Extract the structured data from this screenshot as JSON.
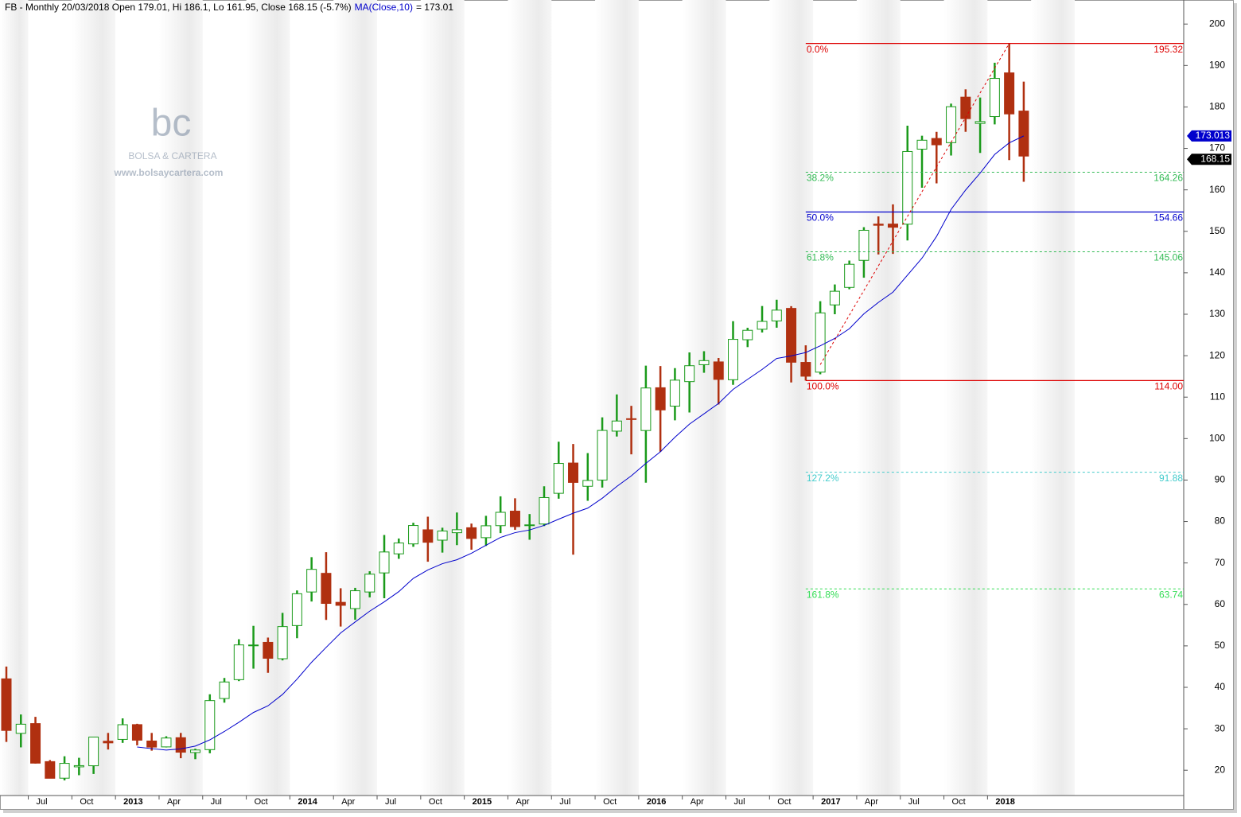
{
  "chart_data": {
    "type": "candlestick",
    "title": "FB - Monthly 20/03/2018 Open 179.01, Hi 186.1, Lo 161.95, Close 168.15 (-5.7%)",
    "ma_name": "MA(Close,10)",
    "ma_text": "= 173.01",
    "watermark": {
      "logo": "bc",
      "brand": "BOLSA & CARTERA",
      "url": "www.bolsaycartera.com"
    },
    "categories": [
      null,
      null,
      "Jul",
      null,
      null,
      "Oct",
      null,
      null,
      "2013",
      null,
      null,
      "Apr",
      null,
      null,
      "Jul",
      null,
      null,
      "Oct",
      null,
      null,
      "2014",
      null,
      null,
      "Apr",
      null,
      null,
      "Jul",
      null,
      null,
      "Oct",
      null,
      null,
      "2015",
      null,
      null,
      "Apr",
      null,
      null,
      "Jul",
      null,
      null,
      "Oct",
      null,
      null,
      "2016",
      null,
      null,
      "Apr",
      null,
      null,
      "Jul",
      null,
      null,
      "Oct",
      null,
      null,
      "2017",
      null,
      null,
      "Apr",
      null,
      null,
      "Jul",
      null,
      null,
      "Oct",
      null,
      null,
      "2018",
      null,
      null
    ],
    "open": [
      42.05,
      28.9,
      31.25,
      22.08,
      18.08,
      20.82,
      21.08,
      27.0,
      27.44,
      31.0,
      27.05,
      25.63,
      27.85,
      24.27,
      24.97,
      37.3,
      41.85,
      50.04,
      50.85,
      46.9,
      54.9,
      63.0,
      67.5,
      60.5,
      59.0,
      63.0,
      67.6,
      72.2,
      74.6,
      78.0,
      75.5,
      77.3,
      78.5,
      76.1,
      79.0,
      82.5,
      79.0,
      79.4,
      86.8,
      94.1,
      88.5,
      90.0,
      101.8,
      104.8,
      101.95,
      112.27,
      107.83,
      113.75,
      117.83,
      118.5,
      114.2,
      123.85,
      126.38,
      128.38,
      131.41,
      118.38,
      116.03,
      132.25,
      136.47,
      143.0,
      151.74,
      151.75,
      151.72,
      169.82,
      172.4,
      171.39,
      182.36,
      176.03,
      177.68,
      188.22,
      179.01
    ],
    "high": [
      45.0,
      33.45,
      32.88,
      22.45,
      23.37,
      23.0,
      28.0,
      29.0,
      32.51,
      31.2,
      29.0,
      28.2,
      29.0,
      25.2,
      38.31,
      42.26,
      51.6,
      54.83,
      52.0,
      57.96,
      63.37,
      71.4,
      72.6,
      63.9,
      64.0,
      68.0,
      76.74,
      75.9,
      79.7,
      81.16,
      78.5,
      82.17,
      79.5,
      81.37,
      86.07,
      85.6,
      81.8,
      88.5,
      99.24,
      98.7,
      96.5,
      105.12,
      110.65,
      107.9,
      117.59,
      117.5,
      116.99,
      120.79,
      121.08,
      119.44,
      128.33,
      126.73,
      131.98,
      133.5,
      131.94,
      122.5,
      133.14,
      137.18,
      142.95,
      151.0,
      153.6,
      156.5,
      175.49,
      173.05,
      174.0,
      180.8,
      184.25,
      182.28,
      190.66,
      195.32,
      186.1
    ],
    "low": [
      26.83,
      25.52,
      21.61,
      18.03,
      17.55,
      18.8,
      19.1,
      25.0,
      26.6,
      26.0,
      24.72,
      25.5,
      22.9,
      22.67,
      24.1,
      36.3,
      41.5,
      44.5,
      43.5,
      46.5,
      51.85,
      60.7,
      56.26,
      54.66,
      56.3,
      61.7,
      61.5,
      71.0,
      73.9,
      70.3,
      72.5,
      74.3,
      73.2,
      74.1,
      77.2,
      78.0,
      75.6,
      78.9,
      85.5,
      72.0,
      85.0,
      88.2,
      100.5,
      96.2,
      89.37,
      96.82,
      104.4,
      106.31,
      115.88,
      108.23,
      112.97,
      122.07,
      125.6,
      126.75,
      113.55,
      114.0,
      115.51,
      130.0,
      136.03,
      138.81,
      144.42,
      144.56,
      147.8,
      160.5,
      161.56,
      168.29,
      174.0,
      168.9,
      175.8,
      167.18,
      161.95
    ],
    "close": [
      29.6,
      31.1,
      21.71,
      18.06,
      21.66,
      21.11,
      28.0,
      26.6,
      30.98,
      27.25,
      25.58,
      27.77,
      24.35,
      24.88,
      36.8,
      41.29,
      50.23,
      50.21,
      47.01,
      54.65,
      62.57,
      68.46,
      60.24,
      59.78,
      63.3,
      67.29,
      72.65,
      74.82,
      79.04,
      74.99,
      77.7,
      78.02,
      75.91,
      78.97,
      82.22,
      78.77,
      79.19,
      85.77,
      94.01,
      89.43,
      89.9,
      101.97,
      104.24,
      104.66,
      112.21,
      106.92,
      114.1,
      117.58,
      118.81,
      114.28,
      123.94,
      126.12,
      128.27,
      130.99,
      118.42,
      115.05,
      130.32,
      135.54,
      142.05,
      150.25,
      151.46,
      150.98,
      169.25,
      171.97,
      170.87,
      180.06,
      177.18,
      176.46,
      186.89,
      178.32,
      168.15
    ],
    "ma": [
      null,
      null,
      null,
      null,
      null,
      null,
      null,
      null,
      null,
      25.61,
      25.21,
      24.87,
      25.14,
      25.82,
      27.33,
      29.35,
      31.57,
      33.93,
      35.54,
      38.28,
      41.98,
      46.05,
      49.63,
      53.12,
      55.77,
      58.37,
      60.62,
      63.08,
      66.28,
      68.31,
      69.83,
      70.78,
      72.35,
      74.27,
      76.16,
      77.31,
      77.96,
      79.06,
      80.56,
      82.0,
      83.22,
      85.61,
      88.45,
      91.02,
      94.02,
      96.83,
      100.32,
      103.5,
      105.98,
      108.47,
      111.87,
      114.29,
      116.69,
      119.32,
      119.94,
      120.76,
      122.38,
      124.17,
      126.5,
      130.1,
      132.85,
      135.33,
      139.43,
      143.53,
      148.77,
      155.28,
      159.96,
      164.05,
      168.54,
      171.34,
      173.01
    ],
    "up_color": "#1a9a1a",
    "down_color": "#b03010",
    "ma_color": "#0000cc",
    "fib_levels": [
      {
        "label": "0.0%",
        "value": 195.32,
        "color": "#dd0000",
        "dashed": false
      },
      {
        "label": "38.2%",
        "value": 164.26,
        "color": "#33bb55",
        "dashed": true
      },
      {
        "label": "50.0%",
        "value": 154.66,
        "color": "#0000cc",
        "dashed": false
      },
      {
        "label": "61.8%",
        "value": 145.06,
        "color": "#33bb55",
        "dashed": true
      },
      {
        "label": "100.0%",
        "value": 114,
        "value_label": "114.00",
        "color": "#dd0000",
        "dashed": false
      },
      {
        "label": "127.2%",
        "value": 91.88,
        "color": "#44cccc",
        "dashed": true
      },
      {
        "label": "161.8%",
        "value": 63.74,
        "color": "#33dd55",
        "dashed": true
      }
    ],
    "price_tags": [
      {
        "value": 173.013,
        "color": "#0000cc"
      },
      {
        "value": 168.15,
        "color": "#000000"
      }
    ],
    "ylim": [
      13.9,
      205.8
    ],
    "yticks": [
      20,
      30,
      40,
      50,
      60,
      70,
      80,
      90,
      100,
      110,
      120,
      130,
      140,
      150,
      160,
      170,
      180,
      190,
      200
    ]
  }
}
